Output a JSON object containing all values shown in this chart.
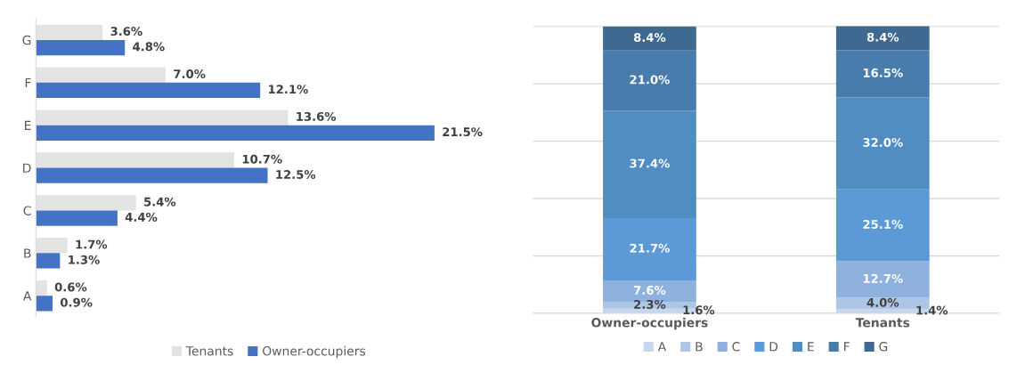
{
  "chart_data": [
    {
      "type": "bar",
      "orientation": "horizontal",
      "categories": [
        "G",
        "F",
        "E",
        "D",
        "C",
        "B",
        "A"
      ],
      "tick_labels": "y",
      "legend": "bottom",
      "grid": false,
      "series": [
        {
          "name": "Tenants",
          "color": "#e3e3e3",
          "values": [
            3.6,
            7.0,
            13.6,
            10.7,
            5.4,
            1.7,
            0.6
          ],
          "value_labels": [
            "3.6%",
            "7.0%",
            "13.6%",
            "10.7%",
            "5.4%",
            "1.7%",
            "0.6%"
          ]
        },
        {
          "name": "Owner-occupiers",
          "color": "#4472c4",
          "values": [
            4.8,
            12.1,
            21.5,
            12.5,
            4.4,
            1.3,
            0.9
          ],
          "value_labels": [
            "4.8%",
            "12.1%",
            "21.5%",
            "12.5%",
            "4.4%",
            "1.3%",
            "0.9%"
          ]
        }
      ]
    },
    {
      "type": "bar",
      "stacked": true,
      "categories": [
        "Owner-occupiers",
        "Tenants"
      ],
      "tick_labels": "x",
      "grid": "y",
      "legend": "bottom",
      "series": [
        {
          "name": "A",
          "color": "#c6d6ec",
          "values": [
            1.6,
            1.4
          ],
          "value_labels": [
            "1.6%",
            "1.4%"
          ]
        },
        {
          "name": "B",
          "color": "#aec6e6",
          "values": [
            2.3,
            4.0
          ],
          "value_labels": [
            "2.3%",
            "4.0%"
          ]
        },
        {
          "name": "C",
          "color": "#8eb1dd",
          "values": [
            7.6,
            12.7
          ],
          "value_labels": [
            "7.6%",
            "12.7%"
          ]
        },
        {
          "name": "D",
          "color": "#5b9ad6",
          "values": [
            21.7,
            25.1
          ],
          "value_labels": [
            "21.7%",
            "25.1%"
          ]
        },
        {
          "name": "E",
          "color": "#4f8dc3",
          "values": [
            37.4,
            32.0
          ],
          "value_labels": [
            "37.4%",
            "32.0%"
          ]
        },
        {
          "name": "F",
          "color": "#487cad",
          "values": [
            21.0,
            16.5
          ],
          "value_labels": [
            "21.0%",
            "16.5%"
          ]
        },
        {
          "name": "G",
          "color": "#3e6990",
          "values": [
            8.4,
            8.4
          ],
          "value_labels": [
            "8.4%",
            "8.4%"
          ]
        }
      ]
    }
  ]
}
